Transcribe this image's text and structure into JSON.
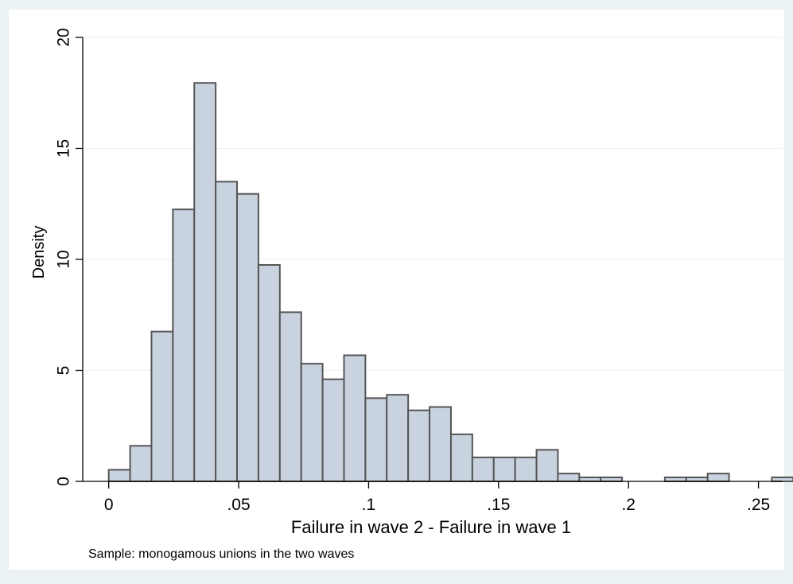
{
  "chart_data": {
    "type": "bar",
    "histogram": true,
    "bin_width": 0.00823,
    "bin_start": 0,
    "values": [
      0.52,
      1.6,
      6.75,
      12.25,
      17.95,
      13.5,
      12.95,
      9.75,
      7.62,
      5.3,
      4.6,
      5.68,
      3.75,
      3.9,
      3.2,
      3.35,
      2.12,
      1.08,
      1.08,
      1.08,
      1.42,
      0.35,
      0.18,
      0.18,
      0,
      0,
      0.18,
      0.18,
      0.35,
      0,
      0,
      0.18
    ],
    "xlabel": "Failure in wave 2 - Failure in wave 1",
    "ylabel": "Density",
    "note": "Sample: monogamous unions in the two waves",
    "xlim": [
      -0.01,
      0.259
    ],
    "ylim": [
      0,
      20
    ],
    "xticks": [
      0,
      0.05,
      0.1,
      0.15,
      0.2,
      0.25
    ],
    "xtick_labels": [
      "0",
      ".05",
      ".1",
      ".15",
      ".2",
      ".25"
    ],
    "yticks": [
      0,
      5,
      10,
      15,
      20
    ],
    "ytick_labels": [
      "0",
      "5",
      "10",
      "15",
      "20"
    ],
    "grid": true,
    "colors": {
      "outer_background": "#eaf2f3",
      "plot_background": "#ffffff",
      "bar_fill": "#c9d3df",
      "bar_stroke": "#555555",
      "grid": "#eaf2f3"
    }
  }
}
